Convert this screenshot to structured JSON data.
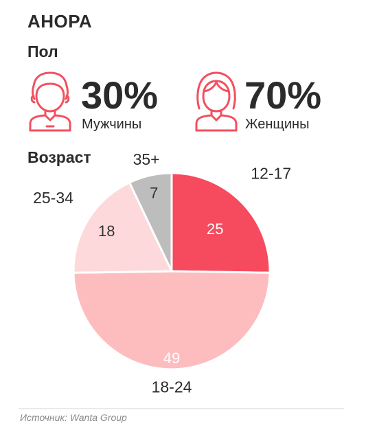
{
  "title": "АНОРА",
  "gender": {
    "heading": "Пол",
    "men": {
      "percent": "30%",
      "label": "Мужчины",
      "icon": "man-icon"
    },
    "women": {
      "percent": "70%",
      "label": "Женщины",
      "icon": "woman-icon"
    },
    "icon_color": "#f2505f"
  },
  "age": {
    "heading": "Возраст"
  },
  "source": "Источник: Wanta Group",
  "chart_data": {
    "type": "pie",
    "title": "Возраст",
    "categories": [
      "12-17",
      "18-24",
      "25-34",
      "35+"
    ],
    "values": [
      25,
      49,
      18,
      7
    ],
    "colors": [
      "#f64a5e",
      "#fdbdbf",
      "#fdd9dc",
      "#bdbdbd"
    ],
    "value_label_colors": [
      "#ffffff",
      "#ffffff",
      "#333333",
      "#333333"
    ]
  }
}
